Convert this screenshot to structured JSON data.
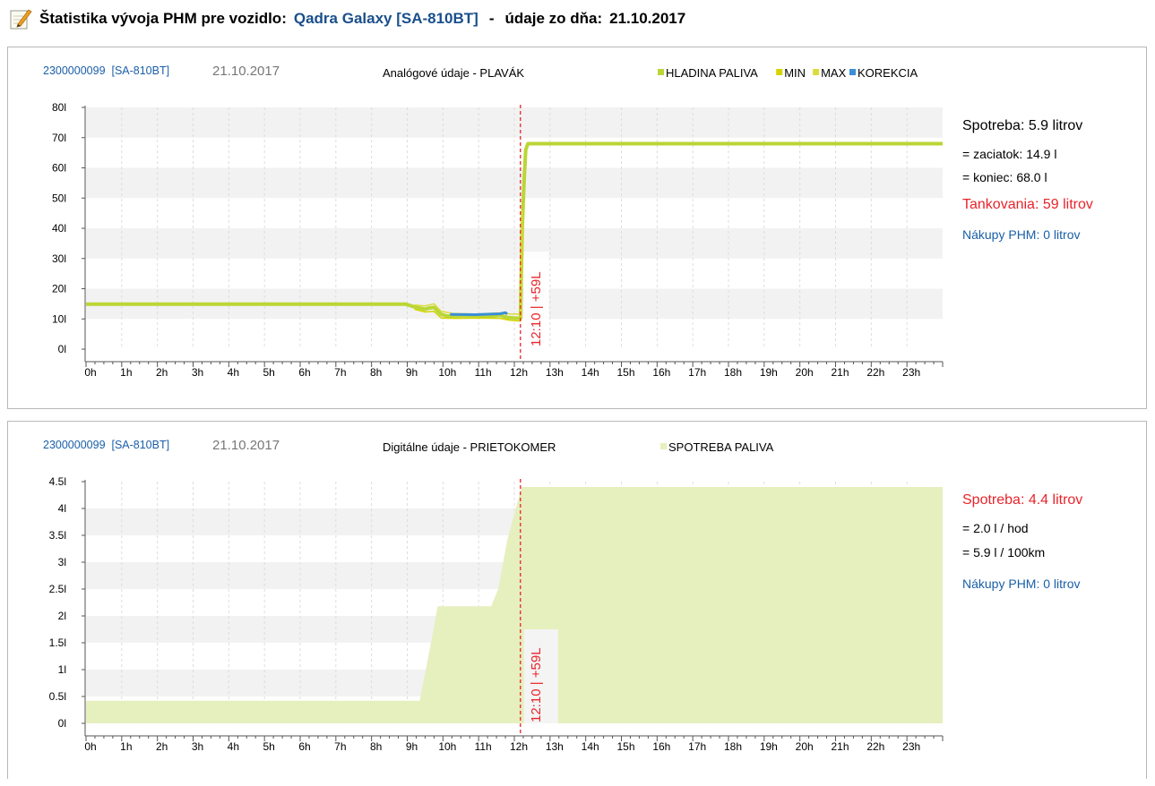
{
  "header": {
    "title": "Štatistika vývoja PHM pre vozidlo:",
    "vehicle": "Qadra Galaxy [SA-810BT]",
    "separator": "-",
    "date_label": "údaje zo dňa:",
    "date": "21.10.2017"
  },
  "colors": {
    "fuel_level": "#bad636",
    "min": "#d4d400",
    "max": "#dadc3c",
    "correction": "#3a8fd6",
    "consumption_fill": "#e6efbe",
    "marker": "#e8242a",
    "link_blue": "#1a5fa8"
  },
  "panels": [
    {
      "id_link": "2300000099  [SA-810BT]",
      "date": "21.10.2017",
      "title": "Analógové údaje - PLAVÁK",
      "marker_label": "12:10 | +59L",
      "sidebar": {
        "consumption": "Spotreba: 5.9 litrov",
        "start": "= zaciatok: 14.9 l",
        "end": "= koniec: 68.0 l",
        "refuel": "Tankovania: 59 litrov",
        "purchases": "Nákupy PHM: 0 litrov"
      }
    },
    {
      "id_link": "2300000099  [SA-810BT]",
      "date": "21.10.2017",
      "title": "Digitálne údaje - PRIETOKOMER",
      "marker_label": "12:10 | +59L",
      "sidebar": {
        "consumption": "Spotreba: 4.4 litrov",
        "per_hour": "= 2.0 l / hod",
        "per_100km": "= 5.9 l / 100km",
        "purchases": "Nákupy PHM: 0 litrov"
      }
    }
  ],
  "chart_data": [
    {
      "type": "line",
      "title": "Analógové údaje - PLAVÁK",
      "x_unit": "hour",
      "x_ticks": [
        "0h",
        "1h",
        "2h",
        "3h",
        "4h",
        "5h",
        "6h",
        "7h",
        "8h",
        "9h",
        "10h",
        "11h",
        "12h",
        "13h",
        "14h",
        "15h",
        "16h",
        "17h",
        "18h",
        "19h",
        "20h",
        "21h",
        "22h",
        "23h"
      ],
      "y_ticks": [
        "0l",
        "10l",
        "20l",
        "30l",
        "40l",
        "50l",
        "60l",
        "70l",
        "80l"
      ],
      "xlim": [
        0,
        24
      ],
      "ylim": [
        0,
        80
      ],
      "legend_position": "top-right",
      "marker_x": 12.17,
      "series": [
        {
          "name": "HLADINA PALIVA",
          "color": "#bad636",
          "points": [
            [
              0,
              14.9
            ],
            [
              8.95,
              14.9
            ],
            [
              9.2,
              14
            ],
            [
              9.5,
              13.2
            ],
            [
              9.6,
              13.6
            ],
            [
              9.75,
              13.8
            ],
            [
              9.95,
              11.5
            ],
            [
              10.1,
              11
            ],
            [
              10.3,
              10.9
            ],
            [
              10.6,
              11.1
            ],
            [
              11,
              11
            ],
            [
              11.3,
              10.9
            ],
            [
              11.6,
              11.2
            ],
            [
              11.8,
              10.5
            ],
            [
              12,
              10.3
            ],
            [
              12.17,
              10.2
            ],
            [
              12.22,
              40
            ],
            [
              12.27,
              55
            ],
            [
              12.32,
              66
            ],
            [
              12.38,
              68
            ],
            [
              24,
              68
            ]
          ]
        },
        {
          "name": "MIN",
          "color": "#d4d400",
          "points": [
            [
              9.2,
              13.2
            ],
            [
              9.5,
              12.3
            ],
            [
              9.75,
              12.5
            ],
            [
              9.95,
              10.3
            ],
            [
              10.3,
              10.2
            ],
            [
              11,
              10.3
            ],
            [
              11.6,
              10.2
            ],
            [
              11.9,
              9.5
            ],
            [
              12.17,
              9.3
            ],
            [
              12.22,
              38
            ]
          ]
        },
        {
          "name": "MAX",
          "color": "#dadc3c",
          "points": [
            [
              9.2,
              14.6
            ],
            [
              9.5,
              14.3
            ],
            [
              9.75,
              15
            ],
            [
              9.95,
              12.5
            ],
            [
              10.3,
              11.8
            ],
            [
              11,
              11.6
            ],
            [
              11.6,
              12
            ],
            [
              11.9,
              11.6
            ],
            [
              12.17,
              11.6
            ],
            [
              12.22,
              46
            ]
          ]
        },
        {
          "name": "KOREKCIA",
          "color": "#3a8fd6",
          "points": [
            [
              10.2,
              11.5
            ],
            [
              10.9,
              11.4
            ],
            [
              11.6,
              11.7
            ],
            [
              11.75,
              12.1
            ],
            [
              11.8,
              11.6
            ]
          ]
        }
      ]
    },
    {
      "type": "area",
      "title": "Digitálne údaje - PRIETOKOMER",
      "x_unit": "hour",
      "x_ticks": [
        "0h",
        "1h",
        "2h",
        "3h",
        "4h",
        "5h",
        "6h",
        "7h",
        "8h",
        "9h",
        "10h",
        "11h",
        "12h",
        "13h",
        "14h",
        "15h",
        "16h",
        "17h",
        "18h",
        "19h",
        "20h",
        "21h",
        "22h",
        "23h"
      ],
      "y_ticks": [
        "0l",
        "0.5l",
        "1l",
        "1.5l",
        "2l",
        "2.5l",
        "3l",
        "3.5l",
        "4l",
        "4.5l"
      ],
      "xlim": [
        0,
        24
      ],
      "ylim": [
        0,
        4.5
      ],
      "legend_position": "top-right",
      "marker_x": 12.17,
      "series": [
        {
          "name": "SPOTREBA PALIVA",
          "color": "#e6efbe",
          "points": [
            [
              0,
              0.42
            ],
            [
              9.35,
              0.42
            ],
            [
              9.55,
              1.1
            ],
            [
              9.75,
              1.8
            ],
            [
              9.85,
              2.18
            ],
            [
              11.35,
              2.18
            ],
            [
              11.55,
              2.5
            ],
            [
              11.8,
              3.4
            ],
            [
              12.0,
              3.9
            ],
            [
              12.2,
              4.4
            ],
            [
              24,
              4.4
            ]
          ]
        }
      ]
    }
  ]
}
